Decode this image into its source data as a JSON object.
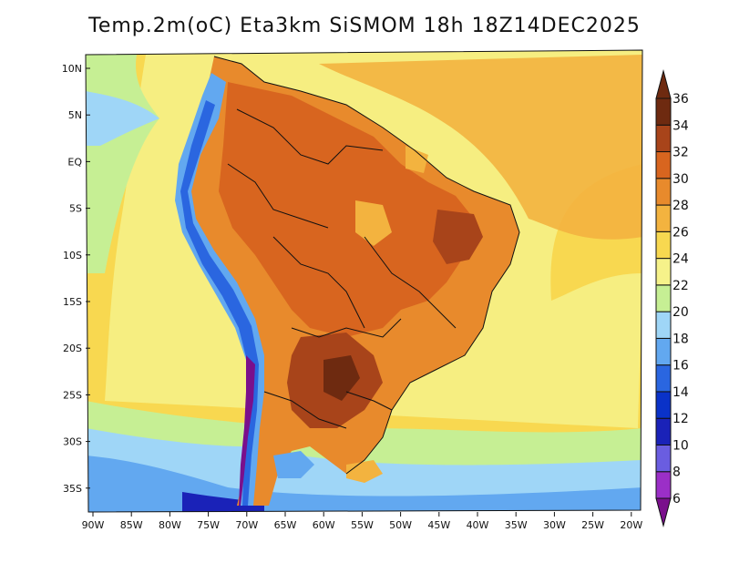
{
  "title": "Temp.2m(oC) Eta3km SiSMOM 18h 18Z14DEC2025",
  "map": {
    "lat_labels": [
      "10N",
      "5N",
      "EQ",
      "5S",
      "10S",
      "15S",
      "20S",
      "25S",
      "30S",
      "35S"
    ],
    "lon_labels": [
      "90W",
      "85W",
      "80W",
      "75W",
      "70W",
      "65W",
      "60W",
      "55W",
      "50W",
      "45W",
      "40W",
      "35W",
      "30W",
      "25W",
      "20W"
    ]
  },
  "colorbar": {
    "labels": [
      "6",
      "8",
      "10",
      "12",
      "14",
      "16",
      "18",
      "20",
      "22",
      "24",
      "26",
      "28",
      "30",
      "32",
      "34",
      "36"
    ],
    "colors": [
      "#7a0f8c",
      "#9b2fc7",
      "#6a5de0",
      "#1a22b8",
      "#0a32c8",
      "#2a66e0",
      "#62a8f0",
      "#9fd6f7",
      "#c6ef94",
      "#f6f28a",
      "#f8d850",
      "#f3b33f",
      "#e88a2c",
      "#d8651f",
      "#a8441a",
      "#6e2a10"
    ]
  }
}
